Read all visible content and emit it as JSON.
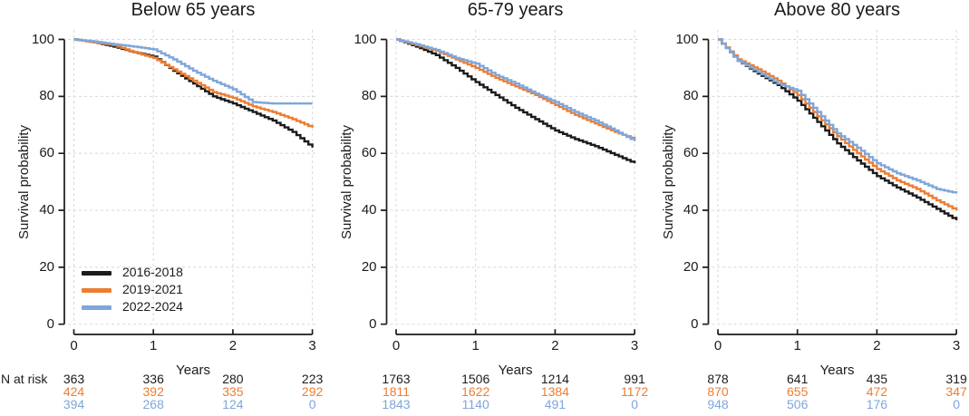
{
  "labels": {
    "n_at_risk": "N at risk",
    "x_axis": "Years",
    "y_axis": "Survival probability"
  },
  "legend": {
    "position": "inside-bottom-left-first-panel",
    "items": [
      {
        "label": "2016-2018",
        "color": "#1b1b1b"
      },
      {
        "label": "2019-2021",
        "color": "#ED7D31"
      },
      {
        "label": "2022-2024",
        "color": "#7EA6DB"
      }
    ]
  },
  "styles": {
    "grid_color": "#d8d8d8",
    "axis_color": "#1b1b1b",
    "background": "#ffffff",
    "black": "#1b1b1b",
    "orange": "#ED7D31",
    "blue": "#7EA6DB"
  },
  "chart_data": [
    {
      "type": "line",
      "subtype": "kaplan-meier-step",
      "title": "Below 65 years",
      "xlabel": "Years",
      "ylabel": "Survival probability",
      "xlim": [
        0,
        3
      ],
      "ylim": [
        0,
        100
      ],
      "grid": true,
      "legend_position": "inside-bottom-left",
      "x_ticks": [
        "0",
        "1",
        "2",
        "3"
      ],
      "y_ticks": [
        "100",
        "80",
        "60",
        "40",
        "20",
        "0"
      ],
      "x": [
        0,
        0.25,
        0.5,
        0.75,
        1,
        1.25,
        1.5,
        1.75,
        2,
        2.25,
        2.5,
        2.75,
        3
      ],
      "series": [
        {
          "name": "2016-2018",
          "color": "#1b1b1b",
          "values": [
            100,
            99,
            97.5,
            95.5,
            94,
            89,
            84.5,
            80,
            77.5,
            74.5,
            71.5,
            67.5,
            62
          ]
        },
        {
          "name": "2019-2021",
          "color": "#ED7D31",
          "values": [
            100,
            99,
            98,
            95.5,
            93.5,
            89.5,
            85.5,
            81.5,
            79.5,
            76.5,
            74.5,
            72,
            69
          ]
        },
        {
          "name": "2022-2024",
          "color": "#7EA6DB",
          "values": [
            100,
            99.3,
            98.3,
            97.5,
            96.5,
            93,
            89,
            85.5,
            82.5,
            78,
            77.5,
            77.5,
            77.5
          ]
        }
      ],
      "n_at_risk": [
        {
          "name": "2016-2018",
          "color": "#1b1b1b",
          "values": [
            "363",
            "336",
            "280",
            "223"
          ]
        },
        {
          "name": "2019-2021",
          "color": "#ED7D31",
          "values": [
            "424",
            "392",
            "335",
            "292"
          ]
        },
        {
          "name": "2022-2024",
          "color": "#7EA6DB",
          "values": [
            "394",
            "268",
            "124",
            "0"
          ]
        }
      ]
    },
    {
      "type": "line",
      "subtype": "kaplan-meier-step",
      "title": "65-79 years",
      "xlabel": "Years",
      "ylabel": "Survival probability",
      "xlim": [
        0,
        3
      ],
      "ylim": [
        0,
        100
      ],
      "grid": true,
      "x_ticks": [
        "0",
        "1",
        "2",
        "3"
      ],
      "y_ticks": [
        "100",
        "80",
        "60",
        "40",
        "20",
        "0"
      ],
      "x": [
        0,
        0.25,
        0.5,
        0.75,
        1,
        1.25,
        1.5,
        1.75,
        2,
        2.25,
        2.5,
        2.75,
        3
      ],
      "series": [
        {
          "name": "2016-2018",
          "color": "#1b1b1b",
          "values": [
            100,
            97.5,
            94.5,
            90,
            85,
            80.5,
            76,
            72,
            68,
            65,
            62.5,
            59.5,
            56.5
          ]
        },
        {
          "name": "2019-2021",
          "color": "#ED7D31",
          "values": [
            100,
            98,
            96,
            93,
            90,
            86.5,
            83.5,
            80.5,
            77,
            73.5,
            70.5,
            67.5,
            65
          ]
        },
        {
          "name": "2022-2024",
          "color": "#7EA6DB",
          "values": [
            100,
            98.3,
            96.3,
            93.5,
            91.5,
            87.5,
            84.5,
            81,
            78,
            74.5,
            71.5,
            68,
            64.3
          ]
        }
      ],
      "n_at_risk": [
        {
          "name": "2016-2018",
          "color": "#1b1b1b",
          "values": [
            "1763",
            "1506",
            "1214",
            "991"
          ]
        },
        {
          "name": "2019-2021",
          "color": "#ED7D31",
          "values": [
            "1811",
            "1622",
            "1384",
            "1172"
          ]
        },
        {
          "name": "2022-2024",
          "color": "#7EA6DB",
          "values": [
            "1843",
            "1140",
            "491",
            "0"
          ]
        }
      ]
    },
    {
      "type": "line",
      "subtype": "kaplan-meier-step",
      "title": "Above 80 years",
      "xlabel": "Years",
      "ylabel": "Survival probability",
      "xlim": [
        0,
        3
      ],
      "ylim": [
        0,
        100
      ],
      "grid": true,
      "x_ticks": [
        "0",
        "1",
        "2",
        "3"
      ],
      "y_ticks": [
        "100",
        "80",
        "60",
        "40",
        "20",
        "0"
      ],
      "x": [
        0,
        0.25,
        0.5,
        0.75,
        1,
        1.25,
        1.5,
        1.75,
        2,
        2.25,
        2.5,
        2.75,
        3
      ],
      "series": [
        {
          "name": "2016-2018",
          "color": "#1b1b1b",
          "values": [
            100,
            92.5,
            88,
            84,
            78.5,
            71,
            63.5,
            57.5,
            52,
            48,
            44.5,
            40.5,
            36.5
          ]
        },
        {
          "name": "2019-2021",
          "color": "#ED7D31",
          "values": [
            100,
            93,
            89.5,
            85.5,
            80.5,
            73,
            66,
            60,
            54.5,
            50.5,
            47.5,
            43.5,
            40
          ]
        },
        {
          "name": "2022-2024",
          "color": "#7EA6DB",
          "values": [
            100,
            92.5,
            88.5,
            84.5,
            82,
            74.5,
            67,
            62,
            56.5,
            53,
            50.5,
            47.5,
            46
          ]
        }
      ],
      "n_at_risk": [
        {
          "name": "2016-2018",
          "color": "#1b1b1b",
          "values": [
            "878",
            "641",
            "435",
            "319"
          ]
        },
        {
          "name": "2019-2021",
          "color": "#ED7D31",
          "values": [
            "870",
            "655",
            "472",
            "347"
          ]
        },
        {
          "name": "2022-2024",
          "color": "#7EA6DB",
          "values": [
            "948",
            "506",
            "176",
            "0"
          ]
        }
      ]
    }
  ]
}
